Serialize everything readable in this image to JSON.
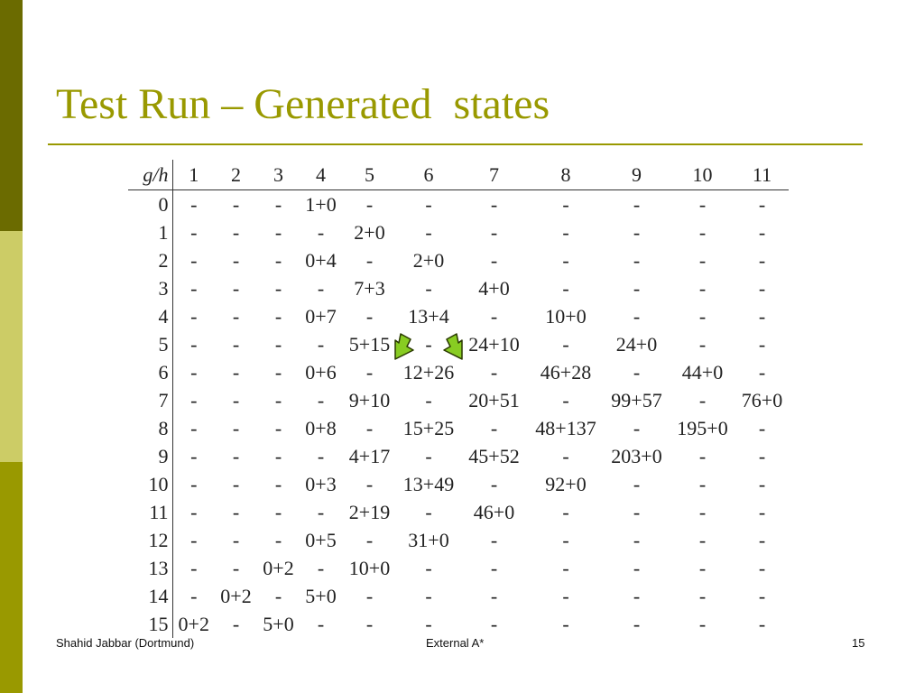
{
  "slide": {
    "title": "Test Run – Generated  states",
    "accent_color": "#999900",
    "sidebar_colors": [
      "#6b6b00",
      "#cccc66",
      "#999900"
    ]
  },
  "table": {
    "corner": "g/h",
    "columns": [
      "1",
      "2",
      "3",
      "4",
      "5",
      "6",
      "7",
      "8",
      "9",
      "10",
      "11"
    ],
    "rows": [
      {
        "g": "0",
        "cells": [
          "-",
          "-",
          "-",
          "1+0",
          "-",
          "-",
          "-",
          "-",
          "-",
          "-",
          "-"
        ]
      },
      {
        "g": "1",
        "cells": [
          "-",
          "-",
          "-",
          "-",
          "2+0",
          "-",
          "-",
          "-",
          "-",
          "-",
          "-"
        ]
      },
      {
        "g": "2",
        "cells": [
          "-",
          "-",
          "-",
          "0+4",
          "-",
          "2+0",
          "-",
          "-",
          "-",
          "-",
          "-"
        ]
      },
      {
        "g": "3",
        "cells": [
          "-",
          "-",
          "-",
          "-",
          "7+3",
          "-",
          "4+0",
          "-",
          "-",
          "-",
          "-"
        ]
      },
      {
        "g": "4",
        "cells": [
          "-",
          "-",
          "-",
          "0+7",
          "-",
          "13+4",
          "-",
          "10+0",
          "-",
          "-",
          "-"
        ]
      },
      {
        "g": "5",
        "cells": [
          "-",
          "-",
          "-",
          "-",
          "5+15",
          "-",
          "24+10",
          "-",
          "24+0",
          "-",
          "-"
        ]
      },
      {
        "g": "6",
        "cells": [
          "-",
          "-",
          "-",
          "0+6",
          "-",
          "12+26",
          "-",
          "46+28",
          "-",
          "44+0",
          "-"
        ]
      },
      {
        "g": "7",
        "cells": [
          "-",
          "-",
          "-",
          "-",
          "9+10",
          "-",
          "20+51",
          "-",
          "99+57",
          "-",
          "76+0"
        ]
      },
      {
        "g": "8",
        "cells": [
          "-",
          "-",
          "-",
          "0+8",
          "-",
          "15+25",
          "-",
          "48+137",
          "-",
          "195+0",
          "-"
        ]
      },
      {
        "g": "9",
        "cells": [
          "-",
          "-",
          "-",
          "-",
          "4+17",
          "-",
          "45+52",
          "-",
          "203+0",
          "-",
          "-"
        ]
      },
      {
        "g": "10",
        "cells": [
          "-",
          "-",
          "-",
          "0+3",
          "-",
          "13+49",
          "-",
          "92+0",
          "-",
          "-",
          "-"
        ]
      },
      {
        "g": "11",
        "cells": [
          "-",
          "-",
          "-",
          "-",
          "2+19",
          "-",
          "46+0",
          "-",
          "-",
          "-",
          "-"
        ]
      },
      {
        "g": "12",
        "cells": [
          "-",
          "-",
          "-",
          "0+5",
          "-",
          "31+0",
          "-",
          "-",
          "-",
          "-",
          "-"
        ]
      },
      {
        "g": "13",
        "cells": [
          "-",
          "-",
          "0+2",
          "-",
          "10+0",
          "-",
          "-",
          "-",
          "-",
          "-",
          "-"
        ]
      },
      {
        "g": "14",
        "cells": [
          "-",
          "0+2",
          "-",
          "5+0",
          "-",
          "-",
          "-",
          "-",
          "-",
          "-",
          "-"
        ]
      },
      {
        "g": "15",
        "cells": [
          "0+2",
          "-",
          "5+0",
          "-",
          "-",
          "-",
          "-",
          "-",
          "-",
          "-",
          "-"
        ]
      }
    ]
  },
  "arrows": {
    "icon": "green-arrow-icon",
    "fill": "#88cc22",
    "stroke": "#2a3a00"
  },
  "footer": {
    "left": "Shahid Jabbar (Dortmund)",
    "center": "External A*",
    "right": "15"
  }
}
